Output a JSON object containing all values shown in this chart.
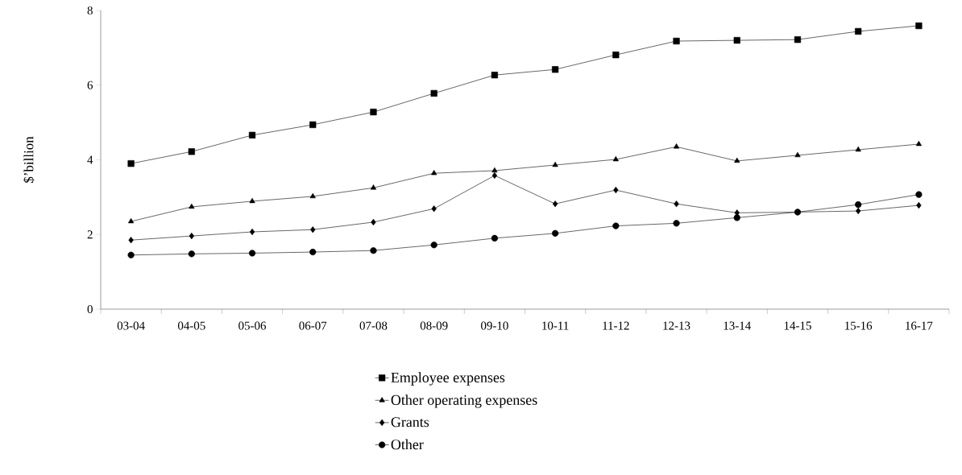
{
  "chart_data": {
    "type": "line",
    "ylabel": "$’billion",
    "categories": [
      "03-04",
      "04-05",
      "05-06",
      "06-07",
      "07-08",
      "08-09",
      "09-10",
      "10-11",
      "11-12",
      "12-13",
      "13-14",
      "14-15",
      "15-16",
      "16-17"
    ],
    "series": [
      {
        "name": "Employee expenses",
        "color": "#000000",
        "marker": "square",
        "values": [
          3.9,
          4.22,
          4.66,
          4.94,
          5.28,
          5.78,
          6.27,
          6.42,
          6.81,
          7.18,
          7.2,
          7.22,
          7.44,
          7.59
        ]
      },
      {
        "name": "Other operating expenses",
        "color": "#000000",
        "marker": "triangle",
        "values": [
          2.35,
          2.74,
          2.89,
          3.02,
          3.25,
          3.64,
          3.71,
          3.86,
          4.01,
          4.35,
          3.97,
          4.12,
          4.27,
          4.42
        ]
      },
      {
        "name": "Grants",
        "color": "#000000",
        "marker": "diamond",
        "values": [
          1.85,
          1.96,
          2.07,
          2.13,
          2.33,
          2.69,
          3.58,
          2.82,
          3.19,
          2.82,
          2.58,
          2.6,
          2.63,
          2.78
        ]
      },
      {
        "name": "Other",
        "color": "#000000",
        "marker": "circle",
        "values": [
          1.45,
          1.48,
          1.5,
          1.53,
          1.57,
          1.72,
          1.9,
          2.03,
          2.23,
          2.3,
          2.45,
          2.6,
          2.8,
          3.07
        ]
      }
    ],
    "ylim": [
      0,
      8
    ],
    "yticks": [
      0,
      2,
      4,
      6,
      8
    ],
    "legend": "bottom",
    "line_style": "solid"
  }
}
